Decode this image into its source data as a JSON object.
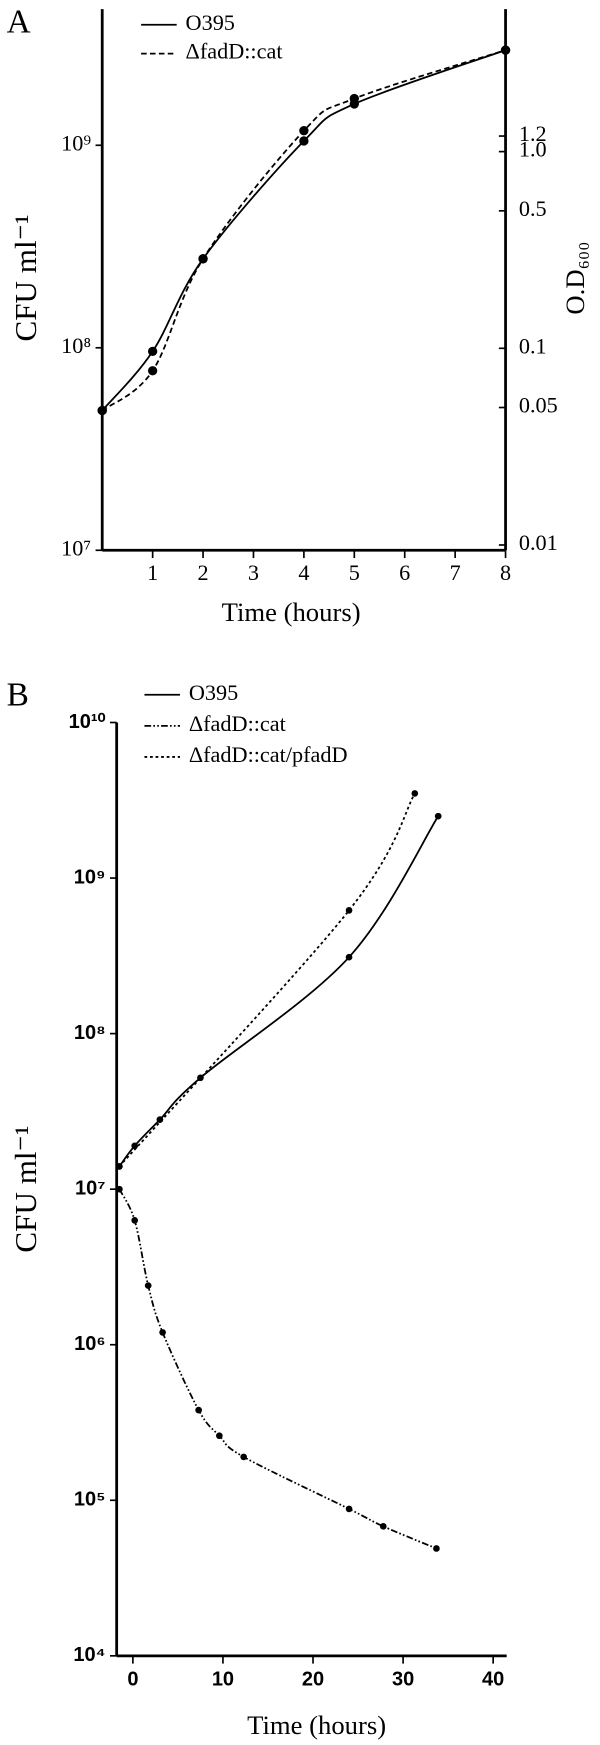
{
  "chart_data": [
    {
      "type": "line",
      "title": "A",
      "xlabel": "Time (hours)",
      "ylabel": "CFU ml⁻¹",
      "y2label": "O.D₆₀₀",
      "log_y": true,
      "legend": "top-left",
      "xlim": [
        0,
        8
      ],
      "xticks": [
        1,
        2,
        3,
        4,
        5,
        6,
        7,
        8
      ],
      "ylim": [
        10000000,
        4700000000
      ],
      "yticks": [
        {
          "value": 10000000,
          "label": "10⁷"
        },
        {
          "value": 100000000,
          "label": "10⁸"
        },
        {
          "value": 1000000000,
          "label": "10⁹"
        }
      ],
      "y2lim": [
        0.0094,
        5.3
      ],
      "y2ticks": [
        0.01,
        0.05,
        0.1,
        0.5,
        {
          "value": 1,
          "label": "1.0"
        },
        1.2
      ],
      "series": [
        {
          "name": "O395",
          "color": "#000000",
          "dash": "solid",
          "x": [
            0,
            1,
            2,
            4,
            5,
            8
          ],
          "values": [
            49000000,
            96000000,
            275000000,
            1050000000,
            1600000000,
            2950000000
          ]
        },
        {
          "name": "ΔfadD::cat",
          "color": "#000000",
          "dash": "dashed",
          "x": [
            0,
            1,
            2,
            4,
            5,
            8
          ],
          "values": [
            49000000,
            77000000,
            275000000,
            1180000000,
            1700000000,
            2950000000
          ]
        }
      ]
    },
    {
      "type": "line",
      "title": "B",
      "xlabel": "Time (hours)",
      "ylabel": "CFU ml⁻¹",
      "log_y": true,
      "legend": "top-left",
      "xlim": [
        -1.8,
        41.5
      ],
      "xticks": [
        0,
        10,
        20,
        30,
        40
      ],
      "ylim": [
        10000,
        10000000000
      ],
      "yticks": [
        {
          "value": 10000,
          "label": "10⁴"
        },
        {
          "value": 100000,
          "label": "10⁵"
        },
        {
          "value": 1000000,
          "label": "10⁶"
        },
        {
          "value": 10000000,
          "label": "10⁷"
        },
        {
          "value": 100000000,
          "label": "10⁸"
        },
        {
          "value": 1000000000,
          "label": "10⁹"
        },
        {
          "value": 10000000000,
          "label": "10¹⁰"
        }
      ],
      "series": [
        {
          "name": "O395",
          "color": "#000000",
          "dash": "solid",
          "x": [
            -1.5,
            0.2,
            3,
            7.5,
            24,
            33.9
          ],
          "values": [
            14000000,
            19000000,
            28000000,
            52000000,
            310000000,
            2500000000
          ]
        },
        {
          "name": "ΔfadD::cat",
          "color": "#000000",
          "dash": "dashdot",
          "x": [
            -1.5,
            0.2,
            1.7,
            3.3,
            7.3,
            9.6,
            12.3,
            24,
            27.8,
            33.7
          ],
          "values": [
            10000000,
            6300000,
            2400000,
            1200000,
            380000,
            260000,
            190000,
            88000,
            68000,
            49000
          ]
        },
        {
          "name": "ΔfadD::cat/pfadD",
          "color": "#000000",
          "dash": "dotted",
          "x": [
            -1.5,
            24,
            31.3
          ],
          "values": [
            14000000,
            620000000,
            3500000000
          ]
        }
      ]
    }
  ]
}
